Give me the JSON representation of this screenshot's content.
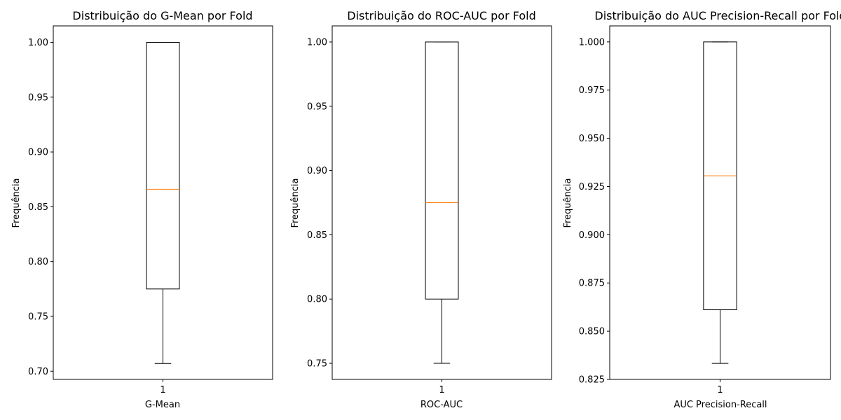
{
  "chart_data": [
    {
      "type": "box",
      "title": "Distribuição do G-Mean por Fold",
      "xlabel": "G-Mean",
      "ylabel": "Frequência",
      "ylim": [
        0.6925,
        1.015
      ],
      "xticks": [
        "1"
      ],
      "yticks": [
        0.7,
        0.75,
        0.8,
        0.85,
        0.9,
        0.95,
        1.0
      ],
      "ytick_labels": [
        "0.70",
        "0.75",
        "0.80",
        "0.85",
        "0.90",
        "0.95",
        "1.00"
      ],
      "box": {
        "whisker_low": 0.707,
        "q1": 0.775,
        "median": 0.866,
        "q3": 1.0,
        "whisker_high": 1.0
      },
      "grid": false
    },
    {
      "type": "box",
      "title": "Distribuição do ROC-AUC por Fold",
      "xlabel": "ROC-AUC",
      "ylabel": "Frequência",
      "ylim": [
        0.7375,
        1.0125
      ],
      "xticks": [
        "1"
      ],
      "yticks": [
        0.75,
        0.8,
        0.85,
        0.9,
        0.95,
        1.0
      ],
      "ytick_labels": [
        "0.75",
        "0.80",
        "0.85",
        "0.90",
        "0.95",
        "1.00"
      ],
      "box": {
        "whisker_low": 0.75,
        "q1": 0.8,
        "median": 0.875,
        "q3": 1.0,
        "whisker_high": 1.0
      },
      "grid": false
    },
    {
      "type": "box",
      "title": "Distribuição do AUC Precision-Recall por Fold",
      "xlabel": "AUC Precision-Recall",
      "ylabel": "Frequência",
      "ylim": [
        0.825,
        1.0083
      ],
      "xticks": [
        "1"
      ],
      "yticks": [
        0.825,
        0.85,
        0.875,
        0.9,
        0.925,
        0.95,
        0.975,
        1.0
      ],
      "ytick_labels": [
        "0.825",
        "0.850",
        "0.875",
        "0.900",
        "0.925",
        "0.950",
        "0.975",
        "1.000"
      ],
      "box": {
        "whisker_low": 0.8333,
        "q1": 0.8611,
        "median": 0.9306,
        "q3": 1.0,
        "whisker_high": 1.0
      },
      "grid": false
    }
  ],
  "colors": {
    "box": "#000000",
    "median": "#ff7f0e",
    "background": "#ffffff"
  }
}
